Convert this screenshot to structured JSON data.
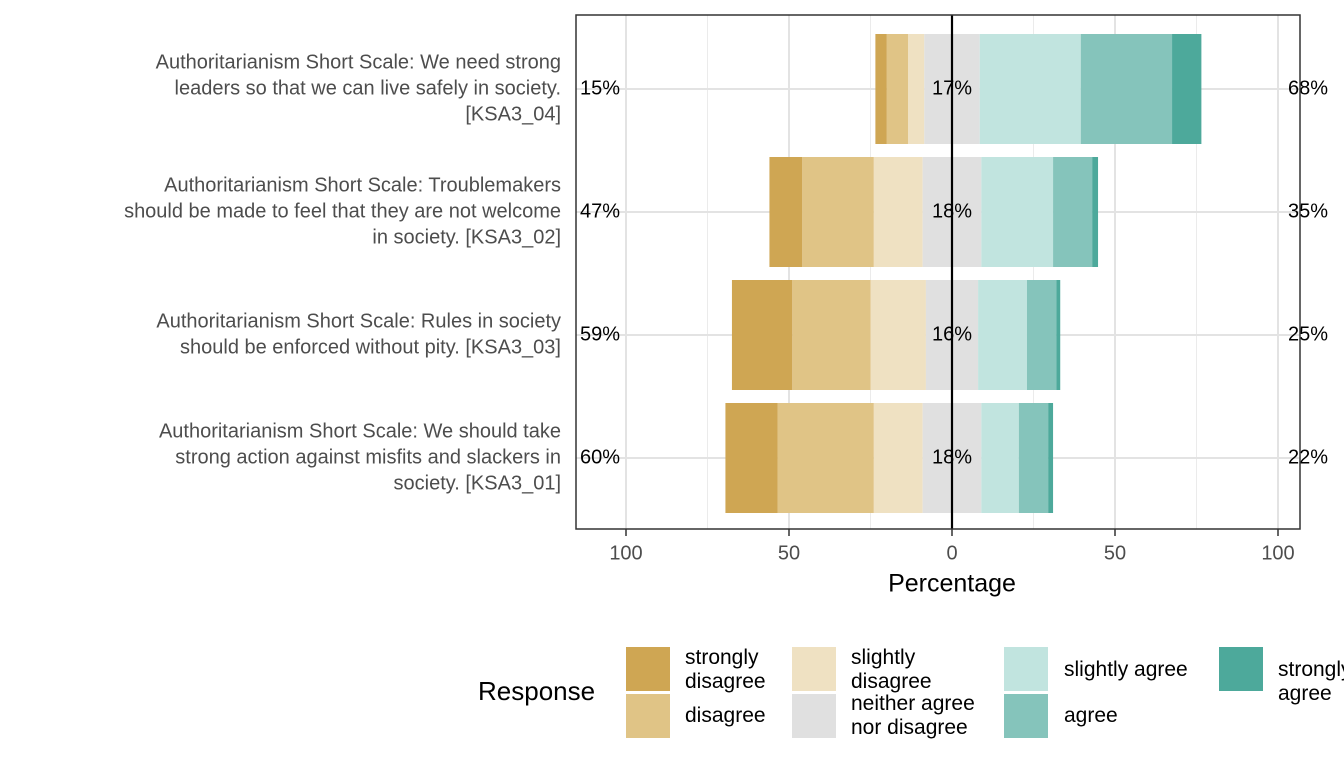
{
  "chart_data": {
    "type": "bar",
    "subtype": "diverging-stacked-likert",
    "xlabel": "Percentage",
    "xlim": [
      -100,
      100
    ],
    "xticks": [
      -100,
      -50,
      0,
      50,
      100
    ],
    "xtick_labels": [
      "100",
      "50",
      "0",
      "50",
      "100"
    ],
    "grid": true,
    "legend_title": "Response",
    "legend_position": "bottom",
    "levels": [
      "strongly disagree",
      "disagree",
      "slightly disagree",
      "neither agree nor disagree",
      "slightly agree",
      "agree",
      "strongly agree"
    ],
    "level_labels": [
      "strongly\ndisagree",
      "disagree",
      "slightly\ndisagree",
      "neither agree\nnor disagree",
      "slightly agree",
      "agree",
      "strongly agree"
    ],
    "colors": [
      "#CFA653",
      "#E0C486",
      "#EFE1C2",
      "#E0E0E0",
      "#C1E4DF",
      "#85C4BB",
      "#4DA99B"
    ],
    "items": [
      {
        "label": "Authoritarianism Short Scale: We need strong\nleaders so that we can live safely in society.\n[KSA3_04]",
        "values": [
          3.5,
          6.5,
          5,
          17,
          31,
          28,
          9
        ],
        "left_pct": "15%",
        "center_pct": "17%",
        "right_pct": "68%"
      },
      {
        "label": "Authoritarianism Short Scale: Troublemakers\nshould be made to feel that they are not welcome\nin society. [KSA3_02]",
        "values": [
          10,
          22,
          15,
          18,
          22,
          12,
          1.8
        ],
        "left_pct": "47%",
        "center_pct": "18%",
        "right_pct": "35%"
      },
      {
        "label": "Authoritarianism Short Scale: Rules in society\nshould be enforced without pity. [KSA3_03]",
        "values": [
          18.5,
          24,
          17,
          16,
          15,
          9,
          1.2
        ],
        "left_pct": "59%",
        "center_pct": "16%",
        "right_pct": "25%"
      },
      {
        "label": "Authoritarianism Short Scale: We should take\nstrong action against misfits and slackers in\nsociety. [KSA3_01]",
        "values": [
          16,
          29.5,
          15,
          18,
          11.5,
          9,
          1.5
        ],
        "left_pct": "60%",
        "center_pct": "18%",
        "right_pct": "22%"
      }
    ]
  }
}
